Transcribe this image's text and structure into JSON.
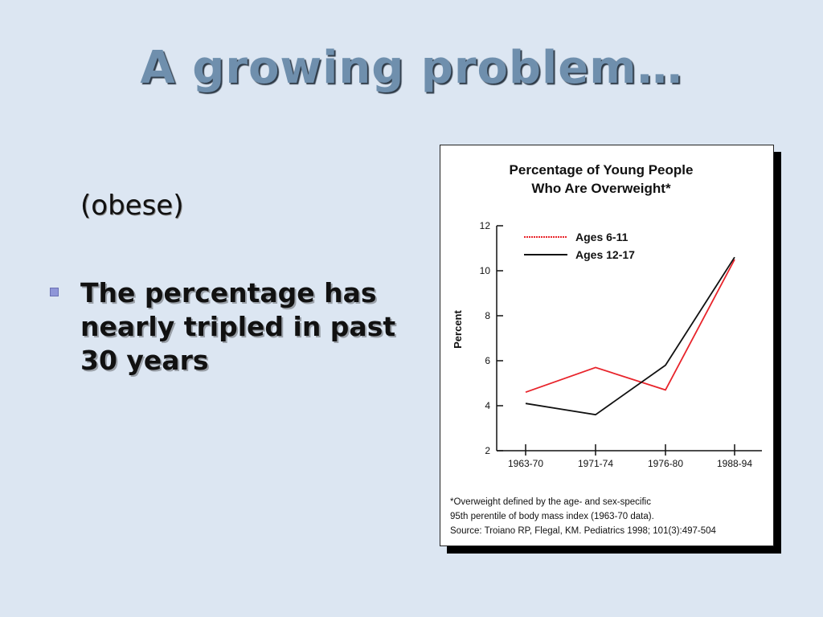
{
  "slide": {
    "title": "A growing problem…",
    "subnote": "(obese)",
    "bullet": "The percentage has nearly tripled in past 30 years"
  },
  "chart_data": {
    "type": "line",
    "title_line1": "Percentage of Young People",
    "title_line2": "Who Are Overweight*",
    "ylabel": "Percent",
    "xlabel": "",
    "categories": [
      "1963-70",
      "1971-74",
      "1976-80",
      "1988-94"
    ],
    "yticks": [
      2,
      4,
      6,
      8,
      10,
      12
    ],
    "ylim": [
      2,
      12
    ],
    "grid": false,
    "legend_position": "top-left",
    "series": [
      {
        "name": "Ages 6-11",
        "color": "#e8242b",
        "values": [
          4.6,
          5.7,
          4.7,
          10.5
        ]
      },
      {
        "name": "Ages 12-17",
        "color": "#111111",
        "values": [
          4.1,
          3.6,
          5.8,
          10.6
        ]
      }
    ],
    "footnote_lines": [
      "*Overweight defined by the age- and sex-specific",
      "95th perentile of body mass index (1963-70 data).",
      "Source: Troiano RP, Flegal, KM. Pediatrics 1998; 101(3):497-504"
    ]
  }
}
